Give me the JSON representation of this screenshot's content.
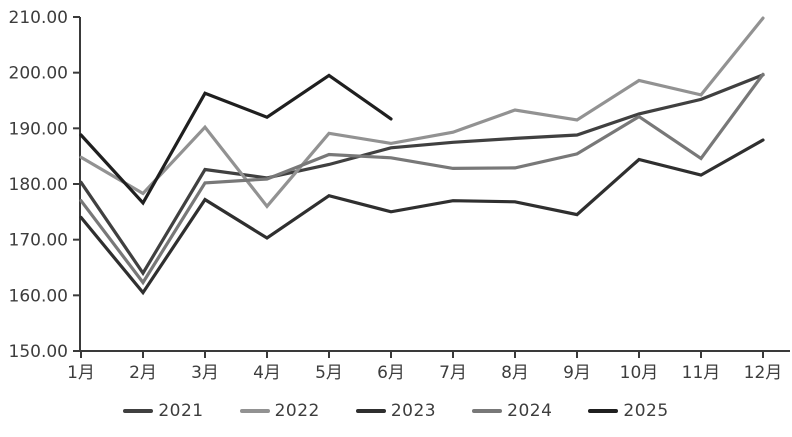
{
  "chart_data": {
    "type": "line",
    "title": "",
    "xlabel": "",
    "ylabel": "",
    "x_categories": [
      "1月",
      "2月",
      "3月",
      "4月",
      "5月",
      "6月",
      "7月",
      "8月",
      "9月",
      "10月",
      "11月",
      "12月"
    ],
    "y_tick_labels": [
      "150.00",
      "160.00",
      "170.00",
      "180.00",
      "190.00",
      "200.00",
      "210.00"
    ],
    "ylim": [
      150,
      210
    ],
    "grid": false,
    "legend_position": "bottom",
    "series": [
      {
        "name": "2021",
        "color": "#404040",
        "values": [
          180.3,
          164.0,
          182.6,
          181.1,
          183.5,
          186.5,
          187.5,
          188.2,
          188.8,
          192.6,
          195.2,
          199.6
        ]
      },
      {
        "name": "2022",
        "color": "#929292",
        "values": [
          184.8,
          178.3,
          190.2,
          176.0,
          189.1,
          187.3,
          189.3,
          193.3,
          191.5,
          198.6,
          196.0,
          209.8
        ]
      },
      {
        "name": "2023",
        "color": "#2f2f2f",
        "values": [
          174.0,
          160.5,
          177.2,
          170.3,
          177.9,
          175.0,
          177.0,
          176.8,
          174.5,
          184.4,
          181.6,
          187.9
        ]
      },
      {
        "name": "2024",
        "color": "#787878",
        "values": [
          177.0,
          162.3,
          180.2,
          180.9,
          185.3,
          184.7,
          182.8,
          182.9,
          185.4,
          192.1,
          184.6,
          199.7
        ]
      },
      {
        "name": "2025",
        "color": "#1f1f1f",
        "values": [
          188.8,
          176.6,
          196.3,
          192.0,
          199.5,
          191.7,
          null,
          null,
          null,
          null,
          null,
          null
        ]
      }
    ]
  },
  "styles": {
    "axis_color": "#3a3a3a",
    "tick_label_color": "#3d3d3d",
    "background": "#ffffff",
    "line_width": 3.2
  }
}
